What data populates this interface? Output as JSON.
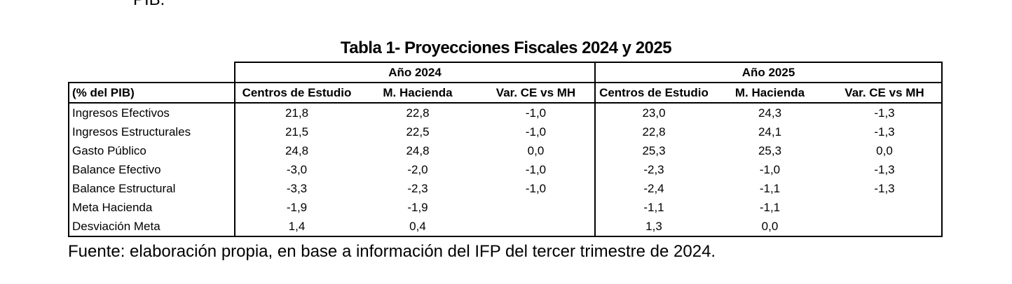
{
  "cut_text": "PIB.",
  "title": "Tabla 1- Proyecciones Fiscales 2024 y 2025",
  "years": [
    "Año 2024",
    "Año 2025"
  ],
  "row_header": "(% del PIB)",
  "columns": [
    "Centros de Estudio",
    "M. Hacienda",
    "Var. CE vs MH",
    "Centros de Estudio",
    "M. Hacienda",
    "Var. CE vs MH"
  ],
  "rows": [
    {
      "label": "Ingresos Efectivos",
      "values": [
        "21,8",
        "22,8",
        "-1,0",
        "23,0",
        "24,3",
        "-1,3"
      ]
    },
    {
      "label": "Ingresos Estructurales",
      "values": [
        "21,5",
        "22,5",
        "-1,0",
        "22,8",
        "24,1",
        "-1,3"
      ]
    },
    {
      "label": "Gasto Público",
      "values": [
        "24,8",
        "24,8",
        "0,0",
        "25,3",
        "25,3",
        "0,0"
      ]
    },
    {
      "label": "Balance Efectivo",
      "values": [
        "-3,0",
        "-2,0",
        "-1,0",
        "-2,3",
        "-1,0",
        "-1,3"
      ]
    },
    {
      "label": "Balance Estructural",
      "values": [
        "-3,3",
        "-2,3",
        "-1,0",
        "-2,4",
        "-1,1",
        "-1,3"
      ]
    },
    {
      "label": "Meta Hacienda",
      "values": [
        "-1,9",
        "-1,9",
        "",
        "-1,1",
        "-1,1",
        ""
      ]
    },
    {
      "label": "Desviación Meta",
      "values": [
        "1,4",
        "0,4",
        "",
        "1,3",
        "0,0",
        ""
      ]
    }
  ],
  "footer": "Fuente: elaboración propia, en base a información del IFP del tercer trimestre de 2024."
}
